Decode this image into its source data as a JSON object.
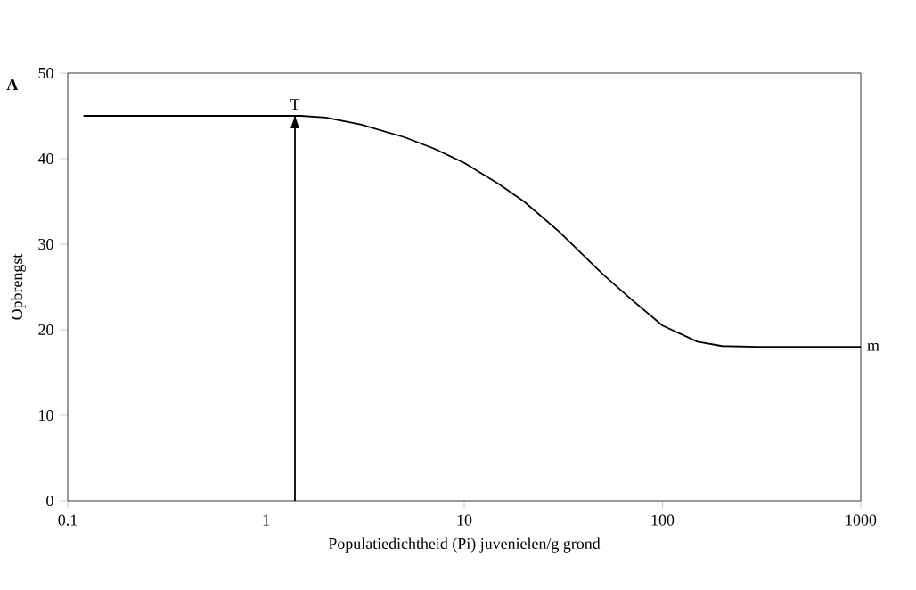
{
  "chart_data": {
    "type": "line",
    "xlabel": "Populatiedichtheid (Pi) juvenielen/g grond",
    "ylabel": "Opbrengst",
    "log": "x",
    "xlim": [
      0.1,
      1000
    ],
    "ylim": [
      0,
      50
    ],
    "xticks": [
      0.1,
      1,
      10,
      100,
      1000
    ],
    "yticks": [
      0,
      10,
      20,
      30,
      40,
      50
    ],
    "marker": "none",
    "line_style": "solid",
    "series": [
      {
        "color": "#000000",
        "x": [
          0.12,
          0.5,
          1,
          1.5,
          2,
          3,
          5,
          7,
          10,
          15,
          20,
          30,
          50,
          70,
          100,
          150,
          200,
          300,
          1000
        ],
        "values": [
          45,
          45,
          45,
          45,
          44.8,
          44,
          42.5,
          41.2,
          39.5,
          37,
          35,
          31.5,
          26.5,
          23.5,
          20.5,
          18.6,
          18.1,
          18,
          18
        ]
      },
      {
        "color": "#000000",
        "x": [
          1.4,
          1.4
        ],
        "values": [
          0,
          45
        ]
      }
    ],
    "annotations": [
      "A",
      {
        "text": "T",
        "x": 1.4,
        "y": 45
      },
      {
        "text": "m",
        "x": 1000,
        "y": 18
      }
    ]
  }
}
